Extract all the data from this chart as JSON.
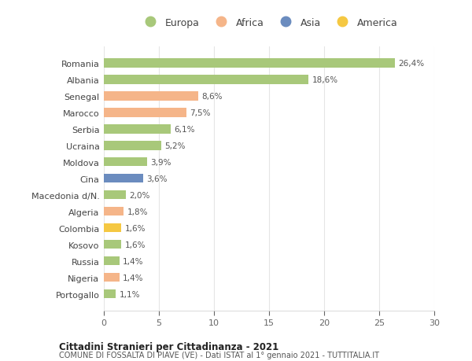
{
  "countries": [
    "Romania",
    "Albania",
    "Senegal",
    "Marocco",
    "Serbia",
    "Ucraina",
    "Moldova",
    "Cina",
    "Macedonia d/N.",
    "Algeria",
    "Colombia",
    "Kosovo",
    "Russia",
    "Nigeria",
    "Portogallo"
  ],
  "values": [
    26.4,
    18.6,
    8.6,
    7.5,
    6.1,
    5.2,
    3.9,
    3.6,
    2.0,
    1.8,
    1.6,
    1.6,
    1.4,
    1.4,
    1.1
  ],
  "labels": [
    "26,4%",
    "18,6%",
    "8,6%",
    "7,5%",
    "6,1%",
    "5,2%",
    "3,9%",
    "3,6%",
    "2,0%",
    "1,8%",
    "1,6%",
    "1,6%",
    "1,4%",
    "1,4%",
    "1,1%"
  ],
  "colors": [
    "#a8c87a",
    "#a8c87a",
    "#f5b589",
    "#f5b589",
    "#a8c87a",
    "#a8c87a",
    "#a8c87a",
    "#6b8cbf",
    "#a8c87a",
    "#f5b589",
    "#f5c842",
    "#a8c87a",
    "#a8c87a",
    "#f5b589",
    "#a8c87a"
  ],
  "legend_labels": [
    "Europa",
    "Africa",
    "Asia",
    "America"
  ],
  "legend_colors": [
    "#a8c87a",
    "#f5b589",
    "#6b8cbf",
    "#f5c842"
  ],
  "xlim": [
    0,
    30
  ],
  "xticks": [
    0,
    5,
    10,
    15,
    20,
    25,
    30
  ],
  "title1": "Cittadini Stranieri per Cittadinanza - 2021",
  "title2": "COMUNE DI FOSSALTA DI PIAVE (VE) - Dati ISTAT al 1° gennaio 2021 - TUTTITALIA.IT",
  "background_color": "#ffffff",
  "grid_color": "#e5e5e5",
  "bar_height": 0.55
}
